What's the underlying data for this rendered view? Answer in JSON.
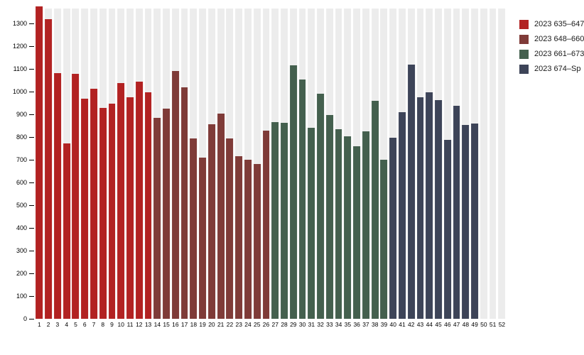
{
  "chart_data": {
    "type": "bar",
    "title": "",
    "xlabel": "",
    "ylabel": "",
    "x_labels": [
      "1",
      "2",
      "3",
      "4",
      "5",
      "6",
      "7",
      "8",
      "9",
      "10",
      "11",
      "12",
      "13",
      "14",
      "15",
      "16",
      "17",
      "18",
      "19",
      "20",
      "21",
      "22",
      "23",
      "24",
      "25",
      "26",
      "27",
      "28",
      "29",
      "30",
      "31",
      "32",
      "33",
      "34",
      "35",
      "36",
      "37",
      "38",
      "39",
      "40",
      "41",
      "42",
      "43",
      "44",
      "45",
      "46",
      "47",
      "48",
      "49",
      "50",
      "51",
      "52"
    ],
    "yticks": [
      0,
      100,
      200,
      300,
      400,
      500,
      600,
      700,
      800,
      900,
      1000,
      1100,
      1200,
      1300
    ],
    "ylim": [
      0,
      1403
    ],
    "grid": "off",
    "legend_position": "right",
    "background_track_color": "#ececec",
    "series": [
      {
        "name": "2023 635–647",
        "color": "#b22222",
        "start_week": 1,
        "values": [
          1375,
          1320,
          1080,
          772,
          1078,
          970,
          1013,
          927,
          948,
          1037,
          976,
          1044,
          997
        ]
      },
      {
        "name": "2023 648–660",
        "color": "#7f3b38",
        "start_week": 14,
        "values": [
          884,
          925,
          1090,
          1020,
          793,
          710,
          856,
          904,
          794,
          716,
          701,
          680,
          828
        ]
      },
      {
        "name": "2023 661–673",
        "color": "#44604e",
        "start_week": 27,
        "values": [
          865,
          862,
          1115,
          1053,
          841,
          992,
          896,
          833,
          802,
          760,
          826,
          960,
          700
        ]
      },
      {
        "name": "2023 674–Sp",
        "color": "#3d4458",
        "start_week": 40,
        "values": [
          797,
          909,
          1118,
          974,
          998,
          962,
          789,
          938,
          853,
          860
        ]
      }
    ]
  }
}
